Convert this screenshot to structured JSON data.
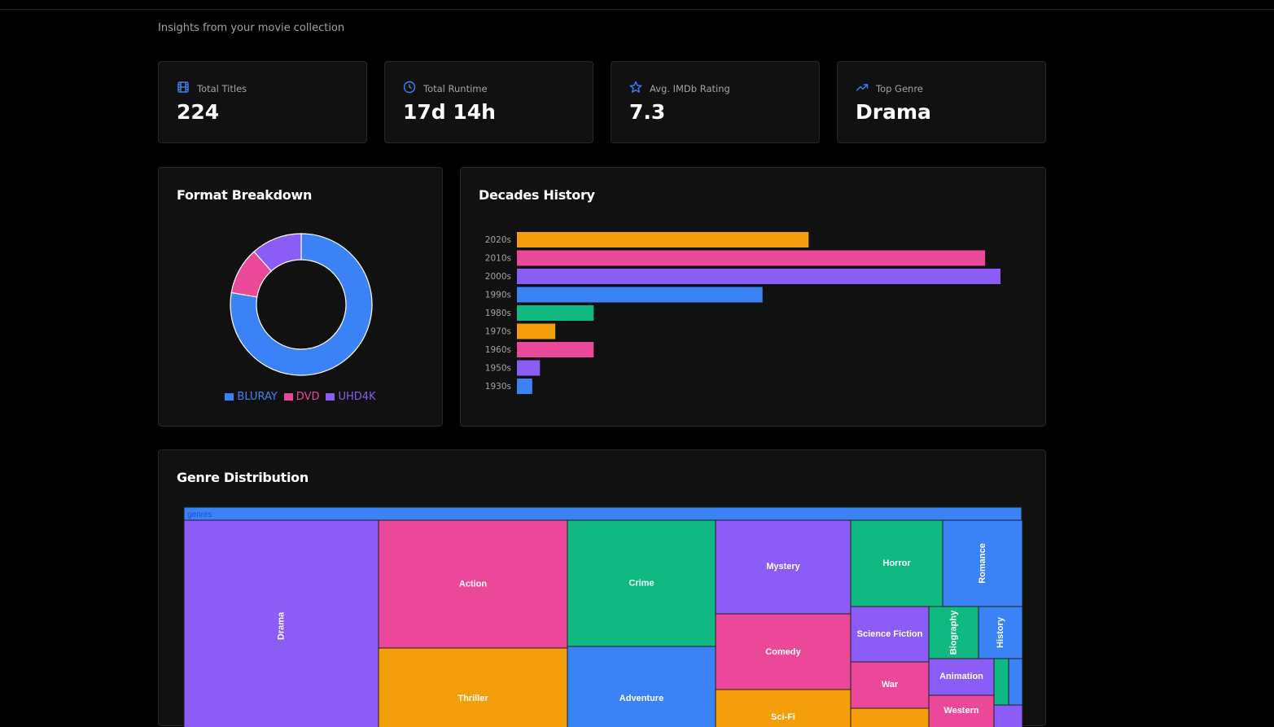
{
  "header": {
    "subtitle": "Insights from your movie collection"
  },
  "stats": [
    {
      "label": "Total Titles",
      "value": "224",
      "icon": "film-icon"
    },
    {
      "label": "Total Runtime",
      "value": "17d 14h",
      "icon": "clock-icon"
    },
    {
      "label": "Avg. IMDb Rating",
      "value": "7.3",
      "icon": "star-icon"
    },
    {
      "label": "Top Genre",
      "value": "Drama",
      "icon": "trending-up-icon"
    }
  ],
  "colors": {
    "blue": "#3b82f6",
    "pink": "#ec4899",
    "purple": "#8b5cf6",
    "green": "#10b981",
    "orange": "#f59e0b",
    "accent": "#3b82f6"
  },
  "format_panel": {
    "title": "Format Breakdown"
  },
  "decades_panel": {
    "title": "Decades History"
  },
  "genre_panel": {
    "title": "Genre Distribution"
  },
  "chart_data": [
    {
      "type": "pie",
      "title": "Format Breakdown",
      "categories": [
        "BLURAY",
        "DVD",
        "UHD4K"
      ],
      "values": [
        174,
        24,
        26
      ],
      "colors": [
        "#3b82f6",
        "#ec4899",
        "#8b5cf6"
      ],
      "legend_position": "bottom"
    },
    {
      "type": "bar",
      "orientation": "horizontal",
      "title": "Decades History",
      "categories": [
        "2020s",
        "2010s",
        "2000s",
        "1990s",
        "1980s",
        "1970s",
        "1960s",
        "1950s",
        "1930s"
      ],
      "values": [
        38,
        61,
        63,
        32,
        10,
        5,
        10,
        3,
        2
      ],
      "colors": [
        "#f59e0b",
        "#ec4899",
        "#8b5cf6",
        "#3b82f6",
        "#10b981",
        "#f59e0b",
        "#ec4899",
        "#8b5cf6",
        "#3b82f6"
      ],
      "xlim": [
        0,
        70
      ]
    },
    {
      "type": "treemap",
      "title": "Genre Distribution",
      "root_label": "genres",
      "categories": [
        "Drama",
        "Action",
        "Thriller",
        "Crime",
        "Adventure",
        "Mystery",
        "Comedy",
        "Sci-Fi",
        "Horror",
        "Romance",
        "Science Fiction",
        "Biography",
        "History",
        "War",
        "Animation",
        "Western"
      ],
      "values": [
        110,
        48,
        42,
        38,
        35,
        25,
        22,
        15,
        15,
        13,
        10,
        8,
        7,
        7,
        5,
        4
      ]
    }
  ]
}
